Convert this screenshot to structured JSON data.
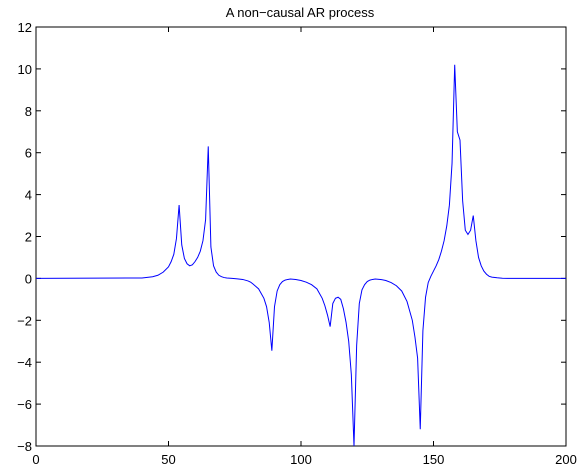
{
  "chart_data": {
    "type": "line",
    "title": "A non−causal AR process",
    "xlabel": "",
    "ylabel": "",
    "xlim": [
      0,
      200
    ],
    "ylim": [
      -8,
      12
    ],
    "xticks": [
      0,
      50,
      100,
      150,
      200
    ],
    "xtick_labels": [
      "0",
      "50",
      "100",
      "150",
      "200"
    ],
    "yticks": [
      -8,
      -6,
      -4,
      -2,
      0,
      2,
      4,
      6,
      8,
      10,
      12
    ],
    "ytick_labels": [
      "−8",
      "−6",
      "−4",
      "−2",
      "0",
      "2",
      "4",
      "6",
      "8",
      "10",
      "12"
    ],
    "grid": false,
    "line_color": "#0000ff",
    "series": [
      {
        "x": [
          0,
          40,
          44,
          46,
          48,
          50,
          51,
          52,
          53,
          54,
          55,
          56,
          57,
          58,
          59,
          60,
          61,
          62,
          63,
          64,
          65,
          66,
          67,
          68,
          69,
          70,
          71,
          72,
          74,
          76,
          78,
          80,
          81,
          82,
          84,
          86,
          87,
          88,
          89,
          90,
          91,
          92,
          93,
          94,
          95,
          96,
          98,
          100,
          102,
          104,
          106,
          108,
          109,
          110,
          111,
          112,
          113,
          114,
          115,
          116,
          117,
          118,
          119,
          120,
          121,
          122,
          123,
          124,
          125,
          126,
          127,
          128,
          130,
          132,
          134,
          136,
          138,
          140,
          142,
          143,
          144,
          145,
          146,
          147,
          148,
          149,
          150,
          151,
          152,
          153,
          154,
          155,
          156,
          157,
          158,
          159,
          160,
          161,
          162,
          163,
          164,
          165,
          166,
          167,
          168,
          169,
          170,
          171,
          172,
          174,
          176,
          178,
          180,
          200
        ],
        "y": [
          0,
          0.02,
          0.08,
          0.15,
          0.3,
          0.55,
          0.8,
          1.15,
          1.9,
          3.5,
          1.6,
          0.95,
          0.7,
          0.6,
          0.65,
          0.8,
          1.0,
          1.3,
          1.8,
          2.8,
          6.3,
          1.5,
          0.6,
          0.3,
          0.15,
          0.08,
          0.04,
          0.02,
          0.0,
          -0.02,
          -0.05,
          -0.12,
          -0.18,
          -0.28,
          -0.5,
          -0.95,
          -1.35,
          -2.1,
          -3.45,
          -1.35,
          -0.6,
          -0.3,
          -0.15,
          -0.08,
          -0.05,
          -0.03,
          -0.05,
          -0.1,
          -0.18,
          -0.3,
          -0.5,
          -0.95,
          -1.3,
          -1.75,
          -2.3,
          -1.2,
          -0.95,
          -0.9,
          -1.0,
          -1.45,
          -2.1,
          -3.0,
          -4.6,
          -8.0,
          -3.2,
          -1.2,
          -0.55,
          -0.3,
          -0.15,
          -0.08,
          -0.05,
          -0.03,
          -0.05,
          -0.1,
          -0.2,
          -0.35,
          -0.6,
          -1.1,
          -2.0,
          -2.8,
          -3.8,
          -7.2,
          -2.5,
          -0.9,
          -0.2,
          0.1,
          0.35,
          0.6,
          0.9,
          1.3,
          1.8,
          2.5,
          3.5,
          5.5,
          10.2,
          7.0,
          6.6,
          3.7,
          2.3,
          2.1,
          2.3,
          3.0,
          1.8,
          1.0,
          0.6,
          0.35,
          0.2,
          0.1,
          0.06,
          0.03,
          0.01,
          0.0,
          0.0,
          0.0
        ]
      }
    ]
  }
}
